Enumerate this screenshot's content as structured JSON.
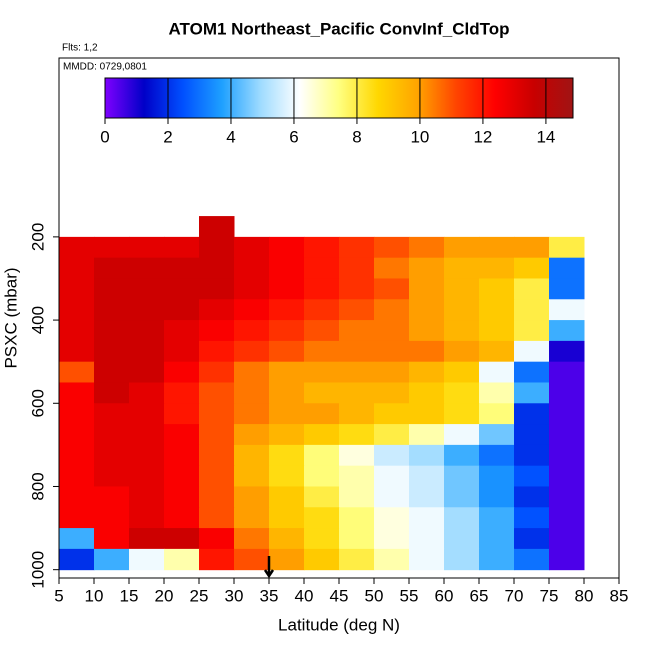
{
  "chart_data": {
    "type": "heatmap",
    "title": "ATOM1 Northeast_Pacific ConvInf_CldTop",
    "annotations": [
      "Flts: 1,2",
      "MMDD: 0729,0801"
    ],
    "xlabel": "Latitude (deg N)",
    "ylabel": "PSXC (mbar)",
    "xlim": [
      5,
      85
    ],
    "xticks": [
      5,
      10,
      15,
      20,
      25,
      30,
      35,
      40,
      45,
      50,
      55,
      60,
      65,
      70,
      75,
      80,
      85
    ],
    "ylim": [
      1020,
      -230
    ],
    "yticks": [
      200,
      400,
      600,
      800,
      1000
    ],
    "clim": [
      0,
      14.86
    ],
    "cticks": [
      0,
      2,
      4,
      6,
      8,
      10,
      12,
      14
    ],
    "colorscale": [
      "#7f00ff",
      "#0000c8",
      "#0050ff",
      "#1ea0ff",
      "#a0dcff",
      "#ffffff",
      "#ffff80",
      "#ffd700",
      "#ffa500",
      "#ff4500",
      "#ff0000",
      "#c80000",
      "#a01414"
    ],
    "marker_x": 35,
    "x": [
      7.5,
      12.5,
      17.5,
      22.5,
      27.5,
      32.5,
      37.5,
      42.5,
      47.5,
      52.5,
      57.5,
      62.5,
      67.5,
      72.5,
      77.5
    ],
    "y": [
      175,
      225,
      275,
      325,
      375,
      425,
      475,
      525,
      575,
      625,
      675,
      725,
      775,
      825,
      875,
      925,
      975
    ],
    "values": [
      [
        null,
        null,
        null,
        null,
        13.5,
        null,
        null,
        null,
        null,
        null,
        null,
        null,
        null,
        null,
        null
      ],
      [
        13,
        13,
        13,
        13,
        13.5,
        13,
        12.5,
        12,
        11.5,
        11,
        10.5,
        10,
        10,
        10,
        8
      ],
      [
        13,
        13.5,
        13.5,
        13.5,
        13.5,
        13,
        12.5,
        12,
        11.5,
        10.5,
        10,
        9.5,
        9.5,
        9,
        3
      ],
      [
        13,
        13.5,
        13.5,
        13.5,
        13.5,
        13,
        12.5,
        12,
        11.5,
        11,
        10,
        9.5,
        9,
        8,
        3
      ],
      [
        13,
        13.5,
        13.5,
        13.5,
        13,
        12.5,
        12,
        11.5,
        11,
        10.5,
        10,
        9.5,
        9,
        8,
        6
      ],
      [
        13,
        13.5,
        13.5,
        13,
        12.5,
        12,
        11.5,
        11,
        10.5,
        10.5,
        10,
        9.5,
        9,
        8,
        4
      ],
      [
        13,
        13.5,
        13.5,
        13,
        12,
        11.5,
        11,
        10.5,
        10.5,
        10.5,
        10.5,
        10,
        9.5,
        6,
        1
      ],
      [
        11,
        13.5,
        13.5,
        12.5,
        11.5,
        10.5,
        10,
        10,
        10,
        10,
        9.5,
        9,
        6,
        3,
        0.5
      ],
      [
        12.5,
        13.5,
        13,
        12,
        11,
        10.5,
        10,
        9.5,
        9.5,
        9.5,
        9,
        8.5,
        7,
        4,
        0.5
      ],
      [
        12.5,
        13,
        13,
        12,
        11,
        10.5,
        10,
        10,
        9.5,
        9,
        9,
        8.5,
        7.5,
        2,
        0.5
      ],
      [
        12.5,
        13,
        13,
        12.5,
        11,
        10,
        9.5,
        9,
        8.5,
        8,
        7,
        6,
        4.5,
        2,
        0.5
      ],
      [
        12.5,
        13,
        13,
        12.5,
        11,
        9.5,
        8.5,
        7.5,
        6.5,
        5.5,
        5,
        4,
        3,
        2,
        0.5
      ],
      [
        12.5,
        13,
        13,
        12.5,
        11,
        9.5,
        8.5,
        7.5,
        7,
        6,
        5.5,
        4.5,
        3.5,
        2.5,
        0.5
      ],
      [
        12.5,
        12.5,
        13,
        12.5,
        11,
        10,
        9,
        8,
        7,
        6,
        5.5,
        4.5,
        3.5,
        2,
        0.5
      ],
      [
        12.5,
        12.5,
        13,
        12.5,
        11,
        10,
        9,
        8.5,
        7.5,
        6.5,
        6,
        5,
        4,
        2.5,
        0.5
      ],
      [
        4,
        12.5,
        13.5,
        13.5,
        12.5,
        10.5,
        9.5,
        8.5,
        7.5,
        6.5,
        6,
        5,
        4,
        2,
        0.5
      ],
      [
        2,
        4,
        6,
        7,
        12,
        11,
        10,
        9,
        8,
        7,
        6,
        5,
        4,
        3,
        0.5
      ]
    ]
  }
}
